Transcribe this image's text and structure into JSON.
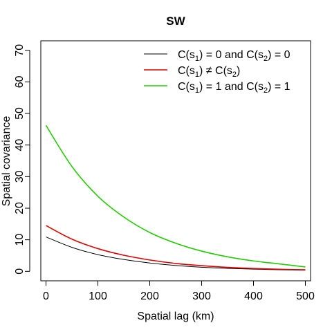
{
  "chart_data": {
    "type": "line",
    "title": "SW",
    "xlabel": "Spatial lag (km)",
    "ylabel": "Spatial covariance",
    "xlim": [
      -10,
      510
    ],
    "ylim": [
      -3,
      73
    ],
    "xticks": [
      0,
      100,
      200,
      300,
      400,
      500
    ],
    "yticks": [
      0,
      10,
      20,
      30,
      40,
      50,
      60,
      70
    ],
    "grid": false,
    "legend_position": "top-right",
    "x": [
      0,
      50,
      100,
      150,
      200,
      250,
      300,
      350,
      400,
      450,
      500
    ],
    "series": [
      {
        "name": "C(s1) = 0 and C(s2) = 0",
        "color": "#000000",
        "values": [
          10.9,
          7.6,
          5.3,
          3.75,
          2.65,
          1.85,
          1.3,
          0.95,
          0.7,
          0.5,
          0.38
        ]
      },
      {
        "name": "C(s1) ≠ C(s2)",
        "color": "#df0000",
        "values": [
          14.5,
          10.2,
          7.2,
          5.1,
          3.6,
          2.5,
          1.8,
          1.25,
          0.9,
          0.65,
          0.5
        ]
      },
      {
        "name": "C(s1) = 1 and C(s2) = 1",
        "color": "#22cc00",
        "values": [
          46.2,
          33.2,
          23.8,
          17.2,
          12.3,
          8.9,
          6.4,
          4.6,
          3.3,
          2.35,
          1.4
        ]
      }
    ],
    "legend_entries": [
      {
        "prefix": "C(s",
        "sub1": "1",
        "middle": ") = 0 and C(s",
        "sub2": "2",
        "suffix": ") = 0"
      },
      {
        "prefix": "C(s",
        "sub1": "1",
        "middle": ") ≠ C(s",
        "sub2": "2",
        "suffix": ")"
      },
      {
        "prefix": "C(s",
        "sub1": "1",
        "middle": ") = 1 and C(s",
        "sub2": "2",
        "suffix": ") = 1"
      }
    ]
  }
}
